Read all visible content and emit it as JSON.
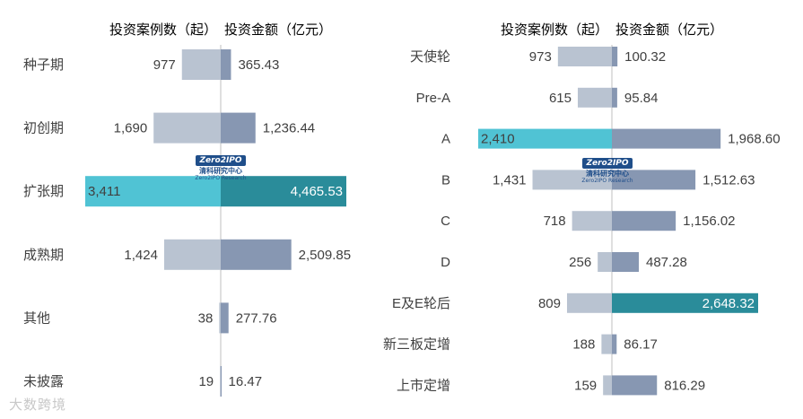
{
  "watermark": {
    "brand": "Zero2IPO",
    "cn": "清科研究中心",
    "en": "Zero2IPO Research"
  },
  "corner_watermark": "大数跨境",
  "colors": {
    "count_bar": "#b9c3d1",
    "amount_bar": "#8797b2",
    "highlight_count": "#50c3d4",
    "highlight_amount": "#2a8c9a",
    "axis_line": "#bfbfbf"
  },
  "chart_data": [
    {
      "type": "bar",
      "orientation": "horizontal-diverging",
      "headers": {
        "left": "投资案例数（起）",
        "right": "投资金额（亿元）"
      },
      "categories": [
        "种子期",
        "初创期",
        "扩张期",
        "成熟期",
        "其他",
        "未披露"
      ],
      "series": [
        {
          "name": "投资案例数（起）",
          "values": [
            977,
            1690,
            3411,
            1424,
            38,
            19
          ],
          "labels": [
            "977",
            "1,690",
            "3,411",
            "1,424",
            "38",
            "19"
          ]
        },
        {
          "name": "投资金额（亿元）",
          "values": [
            365.43,
            1236.44,
            4465.53,
            2509.85,
            277.76,
            16.47
          ],
          "labels": [
            "365.43",
            "1,236.44",
            "4,465.53",
            "2,509.85",
            "277.76",
            "16.47"
          ]
        }
      ],
      "highlight_index": 2
    },
    {
      "type": "bar",
      "orientation": "horizontal-diverging",
      "headers": {
        "left": "投资案例数（起）",
        "right": "投资金额（亿元）"
      },
      "categories": [
        "天使轮",
        "Pre-A",
        "A",
        "B",
        "C",
        "D",
        "E及E轮后",
        "新三板定增",
        "上市定增"
      ],
      "series": [
        {
          "name": "投资案例数（起）",
          "values": [
            973,
            615,
            2410,
            1431,
            718,
            256,
            809,
            188,
            159
          ],
          "labels": [
            "973",
            "615",
            "2,410",
            "1,431",
            "718",
            "256",
            "809",
            "188",
            "159"
          ]
        },
        {
          "name": "投资金额（亿元）",
          "values": [
            100.32,
            95.84,
            1968.6,
            1512.63,
            1156.02,
            487.28,
            2648.32,
            86.17,
            816.29
          ],
          "labels": [
            "100.32",
            "95.84",
            "1,968.60",
            "1,512.63",
            "1,156.02",
            "487.28",
            "2,648.32",
            "86.17",
            "816.29"
          ]
        }
      ],
      "highlight_count_index": 2,
      "highlight_amount_index": 6
    }
  ]
}
